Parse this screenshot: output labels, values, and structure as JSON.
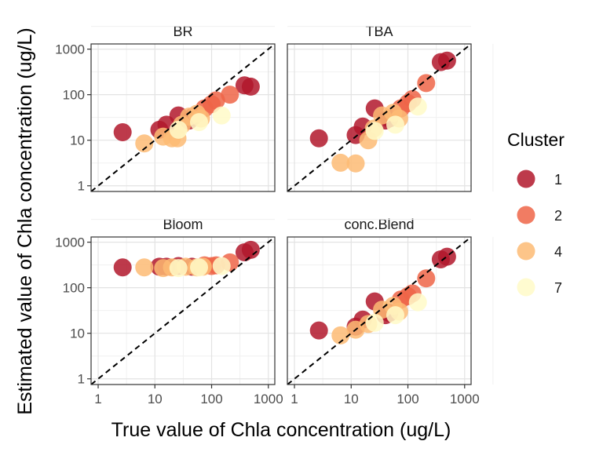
{
  "chart_data": {
    "type": "scatter",
    "xlabel": "True value of Chla concentration (ug/L)",
    "ylabel": "Estimated value of Chla concentration (ug/L)",
    "xscale": "log10",
    "yscale": "log10",
    "xlim": [
      0.75,
      1300
    ],
    "ylim": [
      0.75,
      1300
    ],
    "x_ticks": [
      "1",
      "10",
      "100",
      "1000"
    ],
    "y_ticks": [
      "1",
      "10",
      "100",
      "1000"
    ],
    "reference_line": "1:1 dashed black",
    "grid": true,
    "legend": {
      "title": "Cluster",
      "position": "right",
      "entries": [
        {
          "label": "1",
          "color": "#B2182B"
        },
        {
          "label": "2",
          "color": "#EF6548"
        },
        {
          "label": "4",
          "color": "#FDBB74"
        },
        {
          "label": "7",
          "color": "#FFFAC8"
        }
      ]
    },
    "facets": [
      {
        "title": "BR",
        "points": [
          {
            "x": 2.7,
            "y": 15,
            "cluster": "1"
          },
          {
            "x": 12,
            "y": 17,
            "cluster": "1"
          },
          {
            "x": 16,
            "y": 22,
            "cluster": "1"
          },
          {
            "x": 26,
            "y": 35,
            "cluster": "1"
          },
          {
            "x": 40,
            "y": 27,
            "cluster": "1"
          },
          {
            "x": 47,
            "y": 33,
            "cluster": "1"
          },
          {
            "x": 380,
            "y": 160,
            "cluster": "1"
          },
          {
            "x": 490,
            "y": 150,
            "cluster": "1"
          },
          {
            "x": 75,
            "y": 50,
            "cluster": "2"
          },
          {
            "x": 100,
            "y": 62,
            "cluster": "2"
          },
          {
            "x": 120,
            "y": 75,
            "cluster": "2"
          },
          {
            "x": 210,
            "y": 100,
            "cluster": "2"
          },
          {
            "x": 6.5,
            "y": 8.5,
            "cluster": "4"
          },
          {
            "x": 14,
            "y": 12,
            "cluster": "4"
          },
          {
            "x": 20,
            "y": 11,
            "cluster": "4"
          },
          {
            "x": 25,
            "y": 11,
            "cluster": "4"
          },
          {
            "x": 30,
            "y": 22,
            "cluster": "4"
          },
          {
            "x": 40,
            "y": 33,
            "cluster": "4"
          },
          {
            "x": 55,
            "y": 38,
            "cluster": "4"
          },
          {
            "x": 65,
            "y": 30,
            "cluster": "4"
          },
          {
            "x": 26,
            "y": 17,
            "cluster": "7"
          },
          {
            "x": 60,
            "y": 25,
            "cluster": "7"
          },
          {
            "x": 150,
            "y": 35,
            "cluster": "7"
          }
        ]
      },
      {
        "title": "TBA",
        "points": [
          {
            "x": 2.7,
            "y": 11,
            "cluster": "1"
          },
          {
            "x": 12,
            "y": 13,
            "cluster": "1"
          },
          {
            "x": 16,
            "y": 20,
            "cluster": "1"
          },
          {
            "x": 26,
            "y": 50,
            "cluster": "1"
          },
          {
            "x": 40,
            "y": 27,
            "cluster": "1"
          },
          {
            "x": 47,
            "y": 30,
            "cluster": "1"
          },
          {
            "x": 380,
            "y": 520,
            "cluster": "1"
          },
          {
            "x": 490,
            "y": 560,
            "cluster": "1"
          },
          {
            "x": 75,
            "y": 50,
            "cluster": "2"
          },
          {
            "x": 100,
            "y": 65,
            "cluster": "2"
          },
          {
            "x": 120,
            "y": 80,
            "cluster": "2"
          },
          {
            "x": 210,
            "y": 180,
            "cluster": "2"
          },
          {
            "x": 6.5,
            "y": 3.2,
            "cluster": "4"
          },
          {
            "x": 12,
            "y": 3.1,
            "cluster": "4"
          },
          {
            "x": 20,
            "y": 10,
            "cluster": "4"
          },
          {
            "x": 25,
            "y": 18,
            "cluster": "4"
          },
          {
            "x": 35,
            "y": 35,
            "cluster": "4"
          },
          {
            "x": 55,
            "y": 40,
            "cluster": "4"
          },
          {
            "x": 70,
            "y": 30,
            "cluster": "4"
          },
          {
            "x": 26,
            "y": 16,
            "cluster": "7"
          },
          {
            "x": 60,
            "y": 22,
            "cluster": "7"
          },
          {
            "x": 150,
            "y": 55,
            "cluster": "7"
          }
        ]
      },
      {
        "title": "Bloom",
        "points": [
          {
            "x": 2.7,
            "y": 280,
            "cluster": "1"
          },
          {
            "x": 12,
            "y": 290,
            "cluster": "1"
          },
          {
            "x": 16,
            "y": 290,
            "cluster": "1"
          },
          {
            "x": 26,
            "y": 300,
            "cluster": "1"
          },
          {
            "x": 45,
            "y": 290,
            "cluster": "1"
          },
          {
            "x": 380,
            "y": 600,
            "cluster": "1"
          },
          {
            "x": 490,
            "y": 680,
            "cluster": "1"
          },
          {
            "x": 75,
            "y": 310,
            "cluster": "2"
          },
          {
            "x": 100,
            "y": 300,
            "cluster": "2"
          },
          {
            "x": 120,
            "y": 310,
            "cluster": "2"
          },
          {
            "x": 210,
            "y": 360,
            "cluster": "2"
          },
          {
            "x": 6.5,
            "y": 280,
            "cluster": "4"
          },
          {
            "x": 14,
            "y": 270,
            "cluster": "4"
          },
          {
            "x": 20,
            "y": 280,
            "cluster": "4"
          },
          {
            "x": 35,
            "y": 290,
            "cluster": "4"
          },
          {
            "x": 55,
            "y": 280,
            "cluster": "4"
          },
          {
            "x": 70,
            "y": 290,
            "cluster": "4"
          },
          {
            "x": 26,
            "y": 270,
            "cluster": "7"
          },
          {
            "x": 60,
            "y": 280,
            "cluster": "7"
          },
          {
            "x": 150,
            "y": 300,
            "cluster": "7"
          }
        ]
      },
      {
        "title": "conc.Blend",
        "points": [
          {
            "x": 2.7,
            "y": 11.5,
            "cluster": "1"
          },
          {
            "x": 12,
            "y": 14,
            "cluster": "1"
          },
          {
            "x": 16,
            "y": 20,
            "cluster": "1"
          },
          {
            "x": 26,
            "y": 50,
            "cluster": "1"
          },
          {
            "x": 40,
            "y": 25,
            "cluster": "1"
          },
          {
            "x": 47,
            "y": 28,
            "cluster": "1"
          },
          {
            "x": 380,
            "y": 420,
            "cluster": "1"
          },
          {
            "x": 490,
            "y": 480,
            "cluster": "1"
          },
          {
            "x": 75,
            "y": 55,
            "cluster": "2"
          },
          {
            "x": 100,
            "y": 65,
            "cluster": "2"
          },
          {
            "x": 120,
            "y": 75,
            "cluster": "2"
          },
          {
            "x": 210,
            "y": 160,
            "cluster": "2"
          },
          {
            "x": 6.5,
            "y": 9,
            "cluster": "4"
          },
          {
            "x": 12,
            "y": 12,
            "cluster": "4"
          },
          {
            "x": 20,
            "y": 16,
            "cluster": "4"
          },
          {
            "x": 35,
            "y": 33,
            "cluster": "4"
          },
          {
            "x": 55,
            "y": 40,
            "cluster": "4"
          },
          {
            "x": 70,
            "y": 30,
            "cluster": "4"
          },
          {
            "x": 26,
            "y": 17,
            "cluster": "7"
          },
          {
            "x": 60,
            "y": 25,
            "cluster": "7"
          },
          {
            "x": 150,
            "y": 48,
            "cluster": "7"
          }
        ]
      }
    ]
  }
}
